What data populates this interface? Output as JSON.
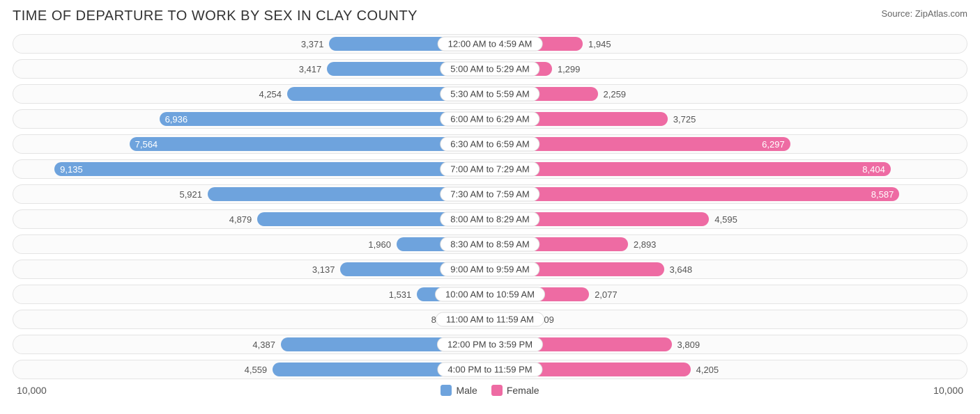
{
  "title": "TIME OF DEPARTURE TO WORK BY SEX IN CLAY COUNTY",
  "source": "Source: ZipAtlas.com",
  "chart": {
    "type": "diverging-bar",
    "max_value": 10000,
    "axis_max_label": "10,000",
    "background_color": "#ffffff",
    "row_bg": "#fbfbfb",
    "row_border": "#e4e4e4",
    "male_color": "#6ea3dd",
    "female_color": "#ee6ba3",
    "legend": [
      {
        "label": "Male",
        "color": "#6ea3dd"
      },
      {
        "label": "Female",
        "color": "#ee6ba3"
      }
    ],
    "inner_label_threshold": 6000,
    "rows": [
      {
        "category": "12:00 AM to 4:59 AM",
        "male": 3371,
        "male_label": "3,371",
        "female": 1945,
        "female_label": "1,945"
      },
      {
        "category": "5:00 AM to 5:29 AM",
        "male": 3417,
        "male_label": "3,417",
        "female": 1299,
        "female_label": "1,299"
      },
      {
        "category": "5:30 AM to 5:59 AM",
        "male": 4254,
        "male_label": "4,254",
        "female": 2259,
        "female_label": "2,259"
      },
      {
        "category": "6:00 AM to 6:29 AM",
        "male": 6936,
        "male_label": "6,936",
        "female": 3725,
        "female_label": "3,725"
      },
      {
        "category": "6:30 AM to 6:59 AM",
        "male": 7564,
        "male_label": "7,564",
        "female": 6297,
        "female_label": "6,297"
      },
      {
        "category": "7:00 AM to 7:29 AM",
        "male": 9135,
        "male_label": "9,135",
        "female": 8404,
        "female_label": "8,404"
      },
      {
        "category": "7:30 AM to 7:59 AM",
        "male": 5921,
        "male_label": "5,921",
        "female": 8587,
        "female_label": "8,587"
      },
      {
        "category": "8:00 AM to 8:29 AM",
        "male": 4879,
        "male_label": "4,879",
        "female": 4595,
        "female_label": "4,595"
      },
      {
        "category": "8:30 AM to 8:59 AM",
        "male": 1960,
        "male_label": "1,960",
        "female": 2893,
        "female_label": "2,893"
      },
      {
        "category": "9:00 AM to 9:59 AM",
        "male": 3137,
        "male_label": "3,137",
        "female": 3648,
        "female_label": "3,648"
      },
      {
        "category": "10:00 AM to 10:59 AM",
        "male": 1531,
        "male_label": "1,531",
        "female": 2077,
        "female_label": "2,077"
      },
      {
        "category": "11:00 AM to 11:59 AM",
        "male": 800,
        "male_label": "800",
        "female": 909,
        "female_label": "909"
      },
      {
        "category": "12:00 PM to 3:59 PM",
        "male": 4387,
        "male_label": "4,387",
        "female": 3809,
        "female_label": "3,809"
      },
      {
        "category": "4:00 PM to 11:59 PM",
        "male": 4559,
        "male_label": "4,559",
        "female": 4205,
        "female_label": "4,205"
      }
    ]
  }
}
